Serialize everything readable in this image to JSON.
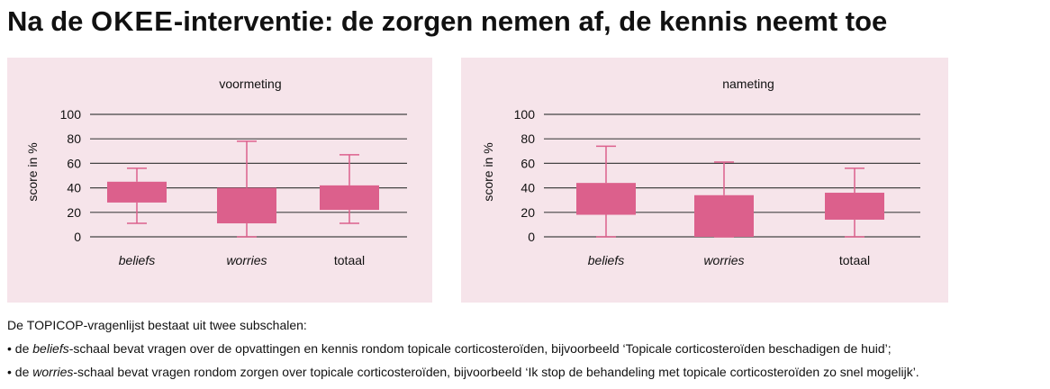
{
  "title": {
    "before": "Na de ",
    "caps": "OKEE",
    "after": "-interventie: de zorgen nemen af, de kennis neemt toe"
  },
  "colors": {
    "box": "#dc608c",
    "whisker": "#dc608c",
    "grid": "#444444",
    "panel": "#f6e4ea"
  },
  "chart_data": [
    {
      "type": "box",
      "title": "voormeting",
      "ylabel": "score in %",
      "ylim": [
        0,
        100
      ],
      "yticks": [
        0,
        20,
        40,
        60,
        80,
        100
      ],
      "grid": true,
      "categories": [
        "beliefs",
        "worries",
        "totaal"
      ],
      "category_italic": [
        true,
        true,
        false
      ],
      "boxes": [
        {
          "min": 11,
          "q1": 28,
          "q3": 45,
          "max": 56
        },
        {
          "min": 0,
          "q1": 11,
          "q3": 40,
          "max": 78
        },
        {
          "min": 11,
          "q1": 22,
          "q3": 42,
          "max": 67
        }
      ]
    },
    {
      "type": "box",
      "title": "nameting",
      "ylabel": "score in %",
      "ylim": [
        0,
        100
      ],
      "yticks": [
        0,
        20,
        40,
        60,
        80,
        100
      ],
      "grid": true,
      "categories": [
        "beliefs",
        "worries",
        "totaal"
      ],
      "category_italic": [
        true,
        true,
        false
      ],
      "boxes": [
        {
          "min": 0,
          "q1": 18,
          "q3": 44,
          "max": 74
        },
        {
          "min": 0,
          "q1": 0,
          "q3": 34,
          "max": 61
        },
        {
          "min": 0,
          "q1": 14,
          "q3": 36,
          "max": 56
        }
      ]
    }
  ],
  "notes": {
    "intro_before": "De ",
    "intro_caps": "TOPICOP",
    "intro_after": "-vragenlijst bestaat uit twee subschalen:",
    "bullet": "•",
    "b1_before": " de ",
    "b1_em": "beliefs",
    "b1_after": "-schaal bevat vragen over de opvattingen en kennis rondom topicale corticosteroïden, bijvoorbeeld ‘Topicale corticosteroïden beschadigen de huid’;",
    "b2_before": " de ",
    "b2_em": "worries",
    "b2_after": "-schaal bevat vragen rondom zorgen over topicale corticosteroïden, bijvoorbeeld ‘Ik stop de behandeling met topicale corticosteroïden zo snel mogelijk’."
  }
}
